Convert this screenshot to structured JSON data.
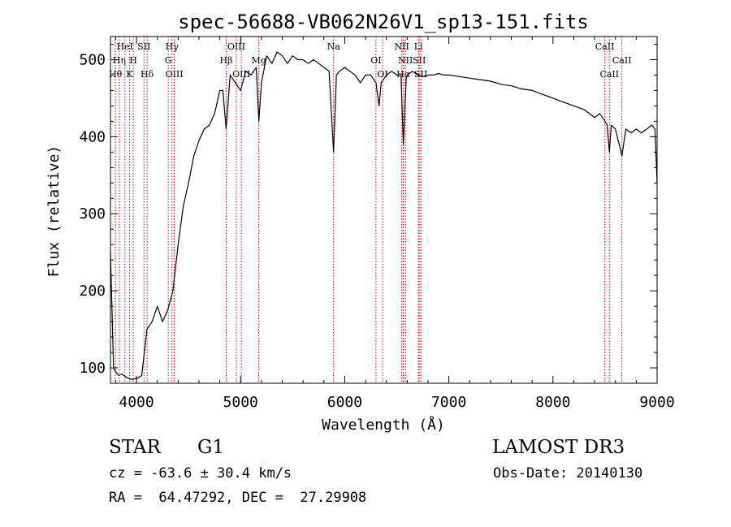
{
  "chart_data": {
    "type": "line",
    "title": "spec-56688-VB062N26V1_sp13-151.fits",
    "xlabel": "Wavelength (Å)",
    "ylabel": "Flux (relative)",
    "xlim": [
      3750,
      9000
    ],
    "ylim": [
      80,
      530
    ],
    "xticks": [
      4000,
      5000,
      6000,
      7000,
      8000,
      9000
    ],
    "yticks": [
      100,
      200,
      300,
      400,
      500
    ],
    "grid": false,
    "line_color": "#000000",
    "marker_color": "#cc0000",
    "series": [
      {
        "x": [
          3750,
          3780,
          3800,
          3830,
          3860,
          3900,
          3950,
          4000,
          4050,
          4100,
          4150,
          4200,
          4250,
          4300,
          4350,
          4400,
          4450,
          4500,
          4550,
          4600,
          4650,
          4700,
          4750,
          4800,
          4830,
          4861,
          4900,
          4950,
          5000,
          5050,
          5100,
          5150,
          5175,
          5200,
          5250,
          5300,
          5350,
          5400,
          5450,
          5500,
          5550,
          5600,
          5650,
          5700,
          5750,
          5800,
          5850,
          5893,
          5920,
          5950,
          6000,
          6050,
          6100,
          6150,
          6200,
          6250,
          6300,
          6330,
          6350,
          6400,
          6450,
          6500,
          6540,
          6563,
          6590,
          6600,
          6650,
          6700,
          6750,
          6800,
          6850,
          6900,
          6950,
          7000,
          7100,
          7200,
          7300,
          7400,
          7500,
          7600,
          7700,
          7800,
          7900,
          8000,
          8100,
          8200,
          8300,
          8400,
          8450,
          8500,
          8520,
          8542,
          8560,
          8600,
          8662,
          8700,
          8750,
          8800,
          8850,
          8900,
          8950,
          8980,
          9000
        ],
        "y": [
          250,
          100,
          95,
          90,
          92,
          88,
          85,
          86,
          90,
          150,
          160,
          180,
          160,
          175,
          200,
          260,
          310,
          340,
          375,
          395,
          410,
          415,
          430,
          460,
          460,
          410,
          480,
          470,
          460,
          485,
          480,
          490,
          420,
          470,
          505,
          495,
          510,
          505,
          495,
          505,
          500,
          500,
          495,
          500,
          495,
          490,
          485,
          380,
          480,
          485,
          490,
          485,
          480,
          470,
          480,
          480,
          470,
          440,
          470,
          480,
          485,
          480,
          480,
          390,
          475,
          480,
          485,
          480,
          478,
          480,
          480,
          482,
          480,
          480,
          478,
          476,
          474,
          472,
          468,
          466,
          462,
          460,
          455,
          450,
          445,
          440,
          435,
          425,
          430,
          420,
          415,
          380,
          415,
          410,
          375,
          410,
          405,
          410,
          405,
          410,
          415,
          410,
          340
        ]
      }
    ],
    "lines": [
      {
        "w": 3798,
        "label": "Hθ",
        "row": 3
      },
      {
        "w": 3835,
        "label": "Hη",
        "row": 2
      },
      {
        "w": 3889,
        "label": "HeI",
        "row": 1
      },
      {
        "w": 3934,
        "label": "K",
        "row": 3
      },
      {
        "w": 3969,
        "label": "H",
        "row": 2
      },
      {
        "w": 4072,
        "label": "SII",
        "row": 1
      },
      {
        "w": 4102,
        "label": "Hδ",
        "row": 3
      },
      {
        "w": 4305,
        "label": "G",
        "row": 2
      },
      {
        "w": 4341,
        "label": "Hγ",
        "row": 1
      },
      {
        "w": 4363,
        "label": "OIII",
        "row": 3
      },
      {
        "w": 4861,
        "label": "Hβ",
        "row": 2
      },
      {
        "w": 4959,
        "label": "OIII",
        "row": 1
      },
      {
        "w": 5007,
        "label": "OIII",
        "row": 3
      },
      {
        "w": 5175,
        "label": "Mg",
        "row": 2
      },
      {
        "w": 5893,
        "label": "Na",
        "row": 1
      },
      {
        "w": 6300,
        "label": "OI",
        "row": 2
      },
      {
        "w": 6364,
        "label": "OI",
        "row": 3
      },
      {
        "w": 6548,
        "label": "NII",
        "row": 1
      },
      {
        "w": 6563,
        "label": "Hα",
        "row": 3
      },
      {
        "w": 6583,
        "label": "NII",
        "row": 2
      },
      {
        "w": 6708,
        "label": "Li",
        "row": 1
      },
      {
        "w": 6716,
        "label": "SII",
        "row": 2
      },
      {
        "w": 6731,
        "label": "SII",
        "row": 3
      },
      {
        "w": 8498,
        "label": "CaII",
        "row": 1
      },
      {
        "w": 8542,
        "label": "CaII",
        "row": 3
      },
      {
        "w": 8662,
        "label": "CaII",
        "row": 2
      }
    ]
  },
  "info": {
    "obj_class": "STAR",
    "obj_subclass": "G1",
    "survey": "LAMOST DR3",
    "cz": "cz = -63.6 ± 30.4 km/s",
    "obs_date": "Obs-Date: 20140130",
    "radec": "RA =  64.47292, DEC =  27.29908"
  }
}
